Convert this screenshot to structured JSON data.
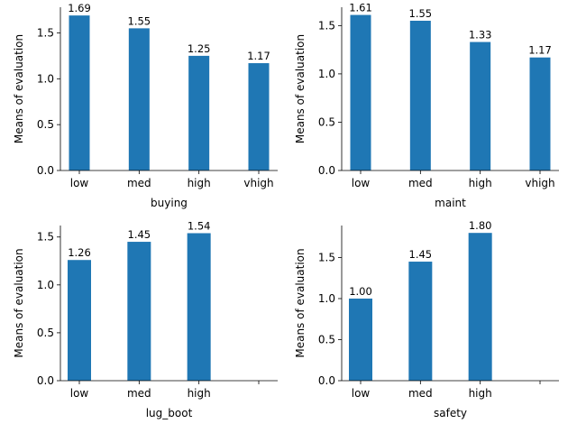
{
  "chart_data": [
    {
      "type": "bar",
      "xlabel": "buying",
      "ylabel": "Means of evaluation",
      "categories": [
        "low",
        "med",
        "high",
        "vhigh"
      ],
      "values": [
        1.69,
        1.55,
        1.25,
        1.17
      ],
      "value_labels": [
        "1.69",
        "1.55",
        "1.25",
        "1.17"
      ],
      "yticks": [
        "0.0",
        "0.5",
        "1.0",
        "1.5"
      ],
      "ylim": [
        0,
        1.78
      ],
      "grid": false,
      "color": "#1f77b4"
    },
    {
      "type": "bar",
      "xlabel": "maint",
      "ylabel": "Means of evaluation",
      "categories": [
        "low",
        "med",
        "high",
        "vhigh"
      ],
      "values": [
        1.61,
        1.55,
        1.33,
        1.17
      ],
      "value_labels": [
        "1.61",
        "1.55",
        "1.33",
        "1.17"
      ],
      "yticks": [
        "0.0",
        "0.5",
        "1.0",
        "1.5"
      ],
      "ylim": [
        0,
        1.69
      ],
      "grid": false,
      "color": "#1f77b4"
    },
    {
      "type": "bar",
      "xlabel": "lug_boot",
      "ylabel": "Means of evaluation",
      "categories": [
        "low",
        "med",
        "high"
      ],
      "values": [
        1.26,
        1.45,
        1.54
      ],
      "value_labels": [
        "1.26",
        "1.45",
        "1.54"
      ],
      "yticks": [
        "0.0",
        "0.5",
        "1.0",
        "1.5"
      ],
      "ylim": [
        0,
        1.62
      ],
      "grid": false,
      "color": "#1f77b4"
    },
    {
      "type": "bar",
      "xlabel": "safety",
      "ylabel": "Means of evaluation",
      "categories": [
        "low",
        "med",
        "high"
      ],
      "values": [
        1.0,
        1.45,
        1.8
      ],
      "value_labels": [
        "1.00",
        "1.45",
        "1.80"
      ],
      "yticks": [
        "0.0",
        "0.5",
        "1.0",
        "1.5"
      ],
      "ylim": [
        0,
        1.89
      ],
      "grid": false,
      "color": "#1f77b4"
    }
  ]
}
